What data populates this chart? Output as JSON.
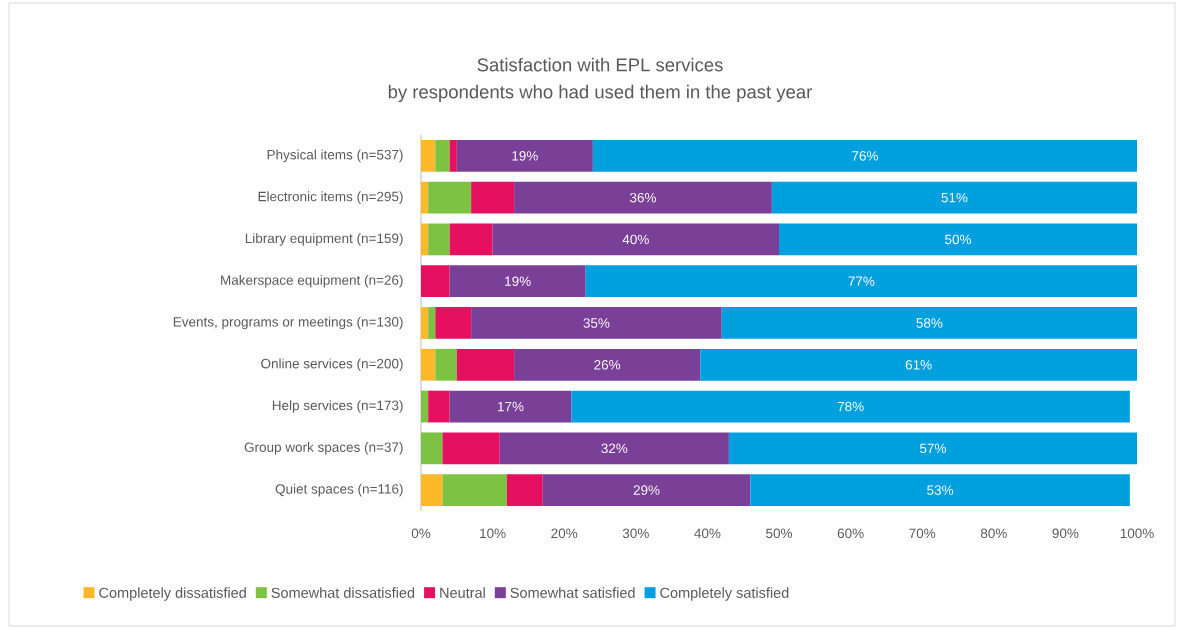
{
  "chart_data": {
    "type": "bar",
    "orientation": "horizontal",
    "stacked": true,
    "title": "Satisfaction with EPL services",
    "subtitle": "by respondents who had used them in the past year",
    "categories": [
      "Physical items (n=537)",
      "Electronic items (n=295)",
      "Library equipment (n=159)",
      "Makerspace equipment (n=26)",
      "Events, programs or meetings (n=130)",
      "Online services (n=200)",
      "Help services (n=173)",
      "Group work spaces (n=37)",
      "Quiet spaces (n=116)"
    ],
    "series": [
      {
        "name": "Completely dissatisfied",
        "color": "#fbb829",
        "values": [
          2,
          1,
          1,
          0,
          1,
          2,
          0,
          0,
          3
        ]
      },
      {
        "name": "Somewhat dissatisfied",
        "color": "#7dc243",
        "values": [
          2,
          6,
          3,
          0,
          1,
          3,
          1,
          3,
          9
        ]
      },
      {
        "name": "Neutral",
        "color": "#e5105f",
        "values": [
          1,
          6,
          6,
          4,
          5,
          8,
          3,
          8,
          5
        ]
      },
      {
        "name": "Somewhat satisfied",
        "color": "#7a3f96",
        "values": [
          19,
          36,
          40,
          19,
          35,
          26,
          17,
          32,
          29
        ],
        "value_labels": [
          "19%",
          "36%",
          "40%",
          "19%",
          "35%",
          "26%",
          "17%",
          "32%",
          "29%"
        ]
      },
      {
        "name": "Completely satisfied",
        "color": "#009fde",
        "values": [
          76,
          51,
          50,
          77,
          58,
          61,
          78,
          57,
          53
        ],
        "value_labels": [
          "76%",
          "51%",
          "50%",
          "77%",
          "58%",
          "61%",
          "78%",
          "57%",
          "53%"
        ]
      }
    ],
    "xlim": [
      0,
      100
    ],
    "xticks": [
      {
        "value": 0,
        "label": "0%"
      },
      {
        "value": 10,
        "label": "10%"
      },
      {
        "value": 20,
        "label": "20%"
      },
      {
        "value": 30,
        "label": "30%"
      },
      {
        "value": 40,
        "label": "40%"
      },
      {
        "value": 50,
        "label": "50%"
      },
      {
        "value": 60,
        "label": "60%"
      },
      {
        "value": 70,
        "label": "70%"
      },
      {
        "value": 80,
        "label": "80%"
      },
      {
        "value": 90,
        "label": "90%"
      },
      {
        "value": 100,
        "label": "100%"
      }
    ],
    "legend": "bottom"
  }
}
